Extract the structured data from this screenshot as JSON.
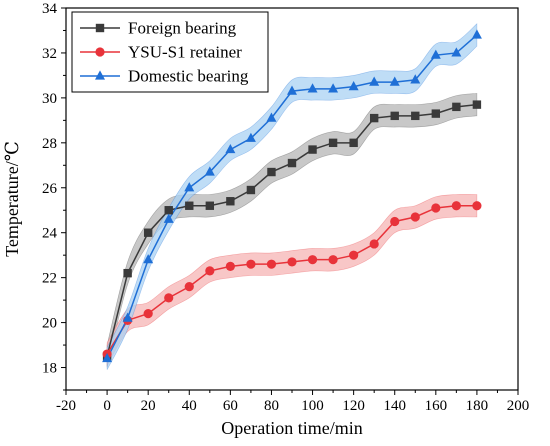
{
  "chart_data": {
    "type": "line",
    "xlabel": "Operation time/min",
    "ylabel": "Temperature/℃",
    "xlim": [
      -20,
      200
    ],
    "ylim": [
      17,
      34
    ],
    "xticks": [
      -20,
      0,
      20,
      40,
      60,
      80,
      100,
      120,
      140,
      160,
      180,
      200
    ],
    "yticks": [
      18,
      20,
      22,
      24,
      26,
      28,
      30,
      32,
      34
    ],
    "grid": false,
    "legend_position": "top-left",
    "x": [
      0,
      10,
      20,
      30,
      40,
      50,
      60,
      70,
      80,
      90,
      100,
      110,
      120,
      130,
      140,
      150,
      160,
      170,
      180
    ],
    "series": [
      {
        "name": "Foreign bearing",
        "marker": "square",
        "color": "#3a3a3a",
        "band_color": "#b5b5b5",
        "values": [
          18.5,
          22.2,
          24.0,
          25.0,
          25.2,
          25.2,
          25.4,
          25.9,
          26.7,
          27.1,
          27.7,
          28.0,
          28.0,
          29.1,
          29.2,
          29.2,
          29.3,
          29.6,
          29.7
        ]
      },
      {
        "name": "YSU-S1 retainer",
        "marker": "circle",
        "color": "#e8333a",
        "band_color": "#f6b4b4",
        "values": [
          18.6,
          20.1,
          20.4,
          21.1,
          21.6,
          22.3,
          22.5,
          22.6,
          22.6,
          22.7,
          22.8,
          22.8,
          23.0,
          23.5,
          24.5,
          24.7,
          25.1,
          25.2,
          25.2
        ]
      },
      {
        "name": "Domestic bearing",
        "marker": "triangle",
        "color": "#1f6fd6",
        "band_color": "#a9d1f3",
        "values": [
          18.4,
          20.2,
          22.8,
          24.6,
          26.0,
          26.7,
          27.7,
          28.2,
          29.1,
          30.3,
          30.4,
          30.4,
          30.5,
          30.7,
          30.7,
          30.8,
          31.9,
          32.0,
          32.8
        ]
      }
    ],
    "band_halfwidth": 0.5
  }
}
